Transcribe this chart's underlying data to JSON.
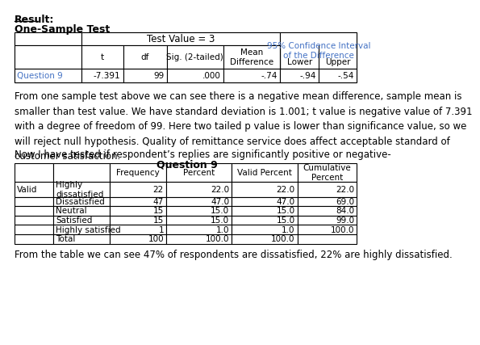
{
  "title_result": "Result:",
  "subtitle1": "One-Sample Test",
  "paragraph1": "From one sample test above we can see there is a negative mean difference, sample mean is\nsmaller than test value. We have standard deviation is 1.001; t value is negative value of 7.391\nwith a degree of freedom of 99. Here two tailed p value is lower than significance value, so we\nwill reject null hypothesis. Quality of remittance service does affect acceptable standard of\ncustomer satisfaction.",
  "paragraph2": "Now I have tested if respondent’s replies are significantly positive or negative-",
  "table2_title": "Question 9",
  "table2_data": [
    [
      "Valid",
      "Highly\ndissatisfied",
      "22",
      "22.0",
      "22.0",
      "22.0"
    ],
    [
      "",
      "Dissatisfied",
      "47",
      "47.0",
      "47.0",
      "69.0"
    ],
    [
      "",
      "Neutral",
      "15",
      "15.0",
      "15.0",
      "84.0"
    ],
    [
      "",
      "Satisfied",
      "15",
      "15.0",
      "15.0",
      "99.0"
    ],
    [
      "",
      "Highly satisfied",
      "1",
      "1.0",
      "1.0",
      "100.0"
    ],
    [
      "",
      "Total",
      "100",
      "100.0",
      "100.0",
      ""
    ]
  ],
  "paragraph3": "From the table we can see 47% of respondents are dissatisfied, 22% are highly dissatisfied.",
  "question9_color": "#4472C4",
  "bg_color": "#ffffff",
  "text_color": "#000000",
  "font_size": 8.5,
  "small_font": 7.5
}
